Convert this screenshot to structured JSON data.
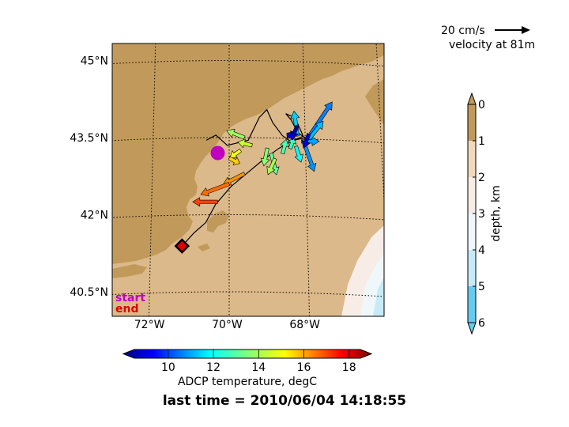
{
  "chart_data": [
    {
      "type": "map",
      "lon_range": [
        -73.0,
        -66.0
      ],
      "lat_range": [
        40.0,
        45.5
      ],
      "x_tick_labels": [
        "72°W",
        "70°W",
        "68°W"
      ],
      "x_tick_values": [
        -72,
        -70,
        -68
      ],
      "y_tick_labels": [
        "45°N",
        "43.5°N",
        "42°N",
        "40.5°N"
      ],
      "y_tick_values": [
        45.0,
        43.5,
        42.0,
        40.5
      ],
      "grid": true,
      "markers": {
        "start": {
          "label": "start",
          "lon": -70.3,
          "lat": 43.2,
          "color": "#c000c0"
        },
        "end": {
          "label": "end",
          "lon": -71.2,
          "lat": 41.4,
          "color": "#e00000"
        }
      },
      "track": [
        [
          -71.2,
          41.4
        ],
        [
          -70.9,
          41.65
        ],
        [
          -70.6,
          41.85
        ],
        [
          -70.35,
          42.2
        ],
        [
          -69.95,
          42.55
        ],
        [
          -69.55,
          42.8
        ],
        [
          -69.15,
          43.05
        ],
        [
          -68.7,
          43.3
        ],
        [
          -68.35,
          43.45
        ],
        [
          -68.05,
          43.55
        ],
        [
          -68.25,
          43.9
        ],
        [
          -68.5,
          43.98
        ],
        [
          -68.35,
          43.85
        ],
        [
          -68.2,
          43.62
        ],
        [
          -68.0,
          43.52
        ],
        [
          -68.4,
          43.45
        ],
        [
          -68.6,
          43.55
        ],
        [
          -68.85,
          43.8
        ],
        [
          -69.0,
          44.05
        ],
        [
          -69.2,
          43.9
        ],
        [
          -69.5,
          43.45
        ],
        [
          -70.05,
          43.35
        ],
        [
          -70.35,
          43.55
        ],
        [
          -70.6,
          43.45
        ]
      ],
      "quiver": {
        "reference_speed_label": "20 cm/s",
        "reference_depth_label": "velocity at 81m",
        "vectors": [
          {
            "lon": -69.4,
            "lat": 43.35,
            "u": -8,
            "v": 2,
            "temp": 14.2
          },
          {
            "lon": -69.6,
            "lat": 43.5,
            "u": -10,
            "v": 4,
            "temp": 13.8
          },
          {
            "lon": -69.7,
            "lat": 43.25,
            "u": -6,
            "v": -4,
            "temp": 14.6
          },
          {
            "lon": -70.0,
            "lat": 43.1,
            "u": 6,
            "v": -3,
            "temp": 15.2
          },
          {
            "lon": -69.6,
            "lat": 42.8,
            "u": -12,
            "v": -6,
            "temp": 15.8
          },
          {
            "lon": -70.0,
            "lat": 42.6,
            "u": -16,
            "v": -6,
            "temp": 16.2
          },
          {
            "lon": -70.3,
            "lat": 42.25,
            "u": -14,
            "v": 0,
            "temp": 16.6
          },
          {
            "lon": -69.0,
            "lat": 43.3,
            "u": -2,
            "v": -10,
            "temp": 13.6
          },
          {
            "lon": -68.9,
            "lat": 43.2,
            "u": 3,
            "v": -12,
            "temp": 13.3
          },
          {
            "lon": -68.8,
            "lat": 43.1,
            "u": -4,
            "v": -9,
            "temp": 13.9
          },
          {
            "lon": -68.6,
            "lat": 43.2,
            "u": 2,
            "v": 8,
            "temp": 13.0
          },
          {
            "lon": -68.4,
            "lat": 43.3,
            "u": 2,
            "v": 6,
            "temp": 12.8
          },
          {
            "lon": -68.2,
            "lat": 43.55,
            "u": -2,
            "v": 14,
            "temp": 11.8
          },
          {
            "lon": -68.1,
            "lat": 43.45,
            "u": 10,
            "v": 0,
            "temp": 11.4
          },
          {
            "lon": -68.0,
            "lat": 43.35,
            "u": 5,
            "v": -14,
            "temp": 11.2
          },
          {
            "lon": -68.25,
            "lat": 43.35,
            "u": 3,
            "v": -9,
            "temp": 12.3
          },
          {
            "lon": -67.85,
            "lat": 43.6,
            "u": 12,
            "v": 18,
            "temp": 11.0
          },
          {
            "lon": -67.9,
            "lat": 43.5,
            "u": 8,
            "v": 10,
            "temp": 11.6
          },
          {
            "lon": -67.9,
            "lat": 43.6,
            "u": -3,
            "v": -8,
            "temp": 9.3
          },
          {
            "lon": -68.2,
            "lat": 43.75,
            "u": -3,
            "v": -7,
            "temp": 9.0
          },
          {
            "lon": -68.3,
            "lat": 43.5,
            "u": -4,
            "v": 3,
            "temp": 9.4
          }
        ]
      }
    },
    {
      "type": "colorbar",
      "label": "depth, km",
      "ticks": [
        0,
        1,
        2,
        3,
        4,
        5,
        6
      ],
      "tick_labels": [
        "0",
        "1",
        "2",
        "3",
        "4",
        "5",
        "6"
      ],
      "levels": [
        {
          "range": [
            0,
            1
          ],
          "color": "#c19a5b"
        },
        {
          "range": [
            1,
            2
          ],
          "color": "#f1d9bb"
        },
        {
          "range": [
            2,
            3
          ],
          "color": "#f8ece6"
        },
        {
          "range": [
            3,
            4
          ],
          "color": "#eff7fb"
        },
        {
          "range": [
            4,
            5
          ],
          "color": "#c6ebf7"
        },
        {
          "range": [
            5,
            6
          ],
          "color": "#66cbee"
        }
      ]
    },
    {
      "type": "colorbar",
      "label": "ADCP temperature, degC",
      "range": [
        8.5,
        18.5
      ],
      "ticks": [
        10,
        12,
        14,
        16,
        18
      ],
      "tick_labels": [
        "10",
        "12",
        "14",
        "16",
        "18"
      ],
      "colormap": "jet"
    }
  ],
  "footer": {
    "text": "last time = 2010/06/04 14:18:55"
  }
}
